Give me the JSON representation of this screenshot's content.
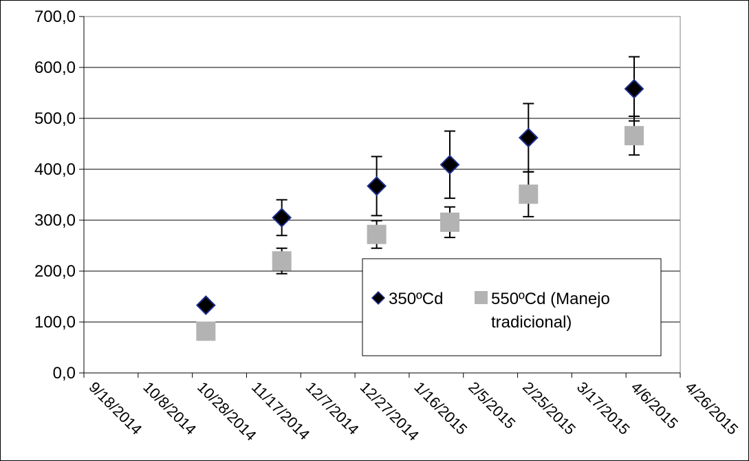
{
  "chart_data": {
    "type": "scatter",
    "title": "",
    "xlabel": "",
    "ylabel": "",
    "ylim": [
      0,
      700
    ],
    "y_ticks": [
      "0,0",
      "100,0",
      "200,0",
      "300,0",
      "400,0",
      "500,0",
      "600,0",
      "700,0"
    ],
    "y_tick_values": [
      0,
      100,
      200,
      300,
      400,
      500,
      600,
      700
    ],
    "x_ticks": [
      "9/18/2014",
      "10/8/2014",
      "10/28/2014",
      "11/17/2014",
      "12/7/2014",
      "12/27/2014",
      "1/16/2015",
      "2/5/2015",
      "2/25/2015",
      "3/17/2015",
      "4/6/2015",
      "4/26/2015"
    ],
    "xlim": [
      "2014-09-18",
      "2015-04-26"
    ],
    "grid": "horizontal",
    "legend_position": "lower-right",
    "series": [
      {
        "name": "350ºCd",
        "marker": "diamond",
        "color": "#000000",
        "edge_color": "#1f2f8f",
        "x": [
          "2014-11-02",
          "2014-11-30",
          "2015-01-04",
          "2015-01-31",
          "2015-03-01",
          "2015-04-09"
        ],
        "y": [
          133,
          305,
          367,
          409,
          462,
          558
        ],
        "error": [
          null,
          35,
          58,
          66,
          67,
          63
        ]
      },
      {
        "name": "550ºCd (Manejo tradicional)",
        "marker": "square",
        "color": "#b3b3b3",
        "x": [
          "2014-11-02",
          "2014-11-30",
          "2015-01-04",
          "2015-01-31",
          "2015-03-01",
          "2015-04-09"
        ],
        "y": [
          82,
          220,
          272,
          296,
          351,
          466
        ],
        "error": [
          null,
          25,
          27,
          30,
          44,
          38
        ]
      }
    ],
    "legend_lines": [
      "350ºCd",
      "550ºCd (Manejo",
      "tradicional)"
    ]
  }
}
